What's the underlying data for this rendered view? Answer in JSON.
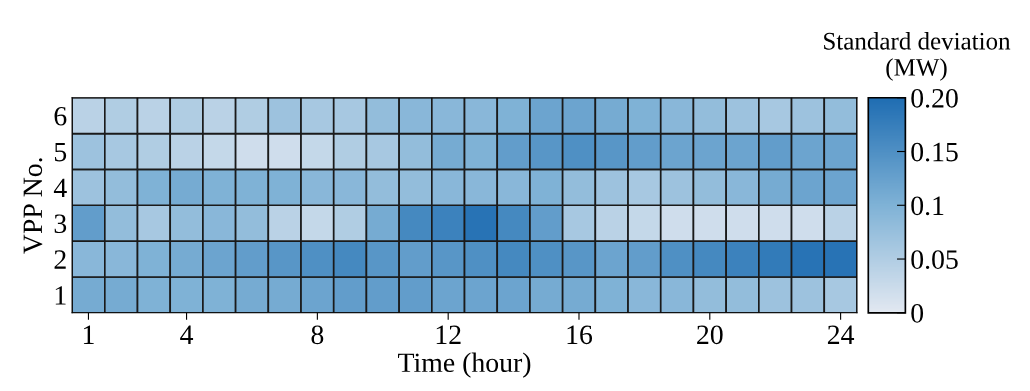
{
  "chart_data": {
    "type": "heatmap",
    "xlabel": "Time (hour)",
    "ylabel": "VPP No.",
    "clabel": "Standard deviation\n(MW)",
    "categories": [
      "1",
      null,
      null,
      "4",
      null,
      null,
      null,
      "8",
      null,
      null,
      null,
      "12",
      null,
      null,
      null,
      "16",
      null,
      null,
      null,
      "20",
      null,
      null,
      null,
      "24"
    ],
    "y_categories": [
      "6",
      "5",
      "4",
      "3",
      "2",
      "1"
    ],
    "cells": [
      [
        0.04,
        0.05,
        0.04,
        0.05,
        0.04,
        0.05,
        0.07,
        0.06,
        0.06,
        0.08,
        0.09,
        0.09,
        0.09,
        0.1,
        0.12,
        0.12,
        0.11,
        0.1,
        0.09,
        0.08,
        0.07,
        0.06,
        0.07,
        0.08
      ],
      [
        0.07,
        0.06,
        0.05,
        0.04,
        0.03,
        0.02,
        0.02,
        0.03,
        0.05,
        0.06,
        0.08,
        0.11,
        0.1,
        0.13,
        0.14,
        0.15,
        0.14,
        0.13,
        0.12,
        0.12,
        0.12,
        0.13,
        0.12,
        0.12
      ],
      [
        0.07,
        0.08,
        0.1,
        0.11,
        0.1,
        0.1,
        0.1,
        0.09,
        0.09,
        0.08,
        0.08,
        0.09,
        0.09,
        0.09,
        0.1,
        0.08,
        0.07,
        0.06,
        0.07,
        0.08,
        0.09,
        0.11,
        0.12,
        0.12
      ],
      [
        0.13,
        0.08,
        0.06,
        0.08,
        0.09,
        0.08,
        0.04,
        0.03,
        0.05,
        0.11,
        0.16,
        0.17,
        0.19,
        0.16,
        0.13,
        0.06,
        0.04,
        0.03,
        0.02,
        0.02,
        0.02,
        0.02,
        0.02,
        0.04
      ],
      [
        0.09,
        0.09,
        0.1,
        0.11,
        0.12,
        0.13,
        0.14,
        0.15,
        0.16,
        0.14,
        0.13,
        0.14,
        0.15,
        0.16,
        0.15,
        0.14,
        0.12,
        0.13,
        0.15,
        0.16,
        0.17,
        0.18,
        0.19,
        0.19
      ],
      [
        0.11,
        0.11,
        0.1,
        0.1,
        0.1,
        0.11,
        0.11,
        0.12,
        0.13,
        0.13,
        0.13,
        0.12,
        0.12,
        0.12,
        0.11,
        0.11,
        0.1,
        0.09,
        0.09,
        0.08,
        0.08,
        0.07,
        0.07,
        0.06
      ]
    ],
    "clim": [
      0,
      0.2
    ],
    "cticks": [
      0,
      0.05,
      0.1,
      0.15,
      {
        "value": 0.2,
        "label": "0.20"
      }
    ]
  }
}
